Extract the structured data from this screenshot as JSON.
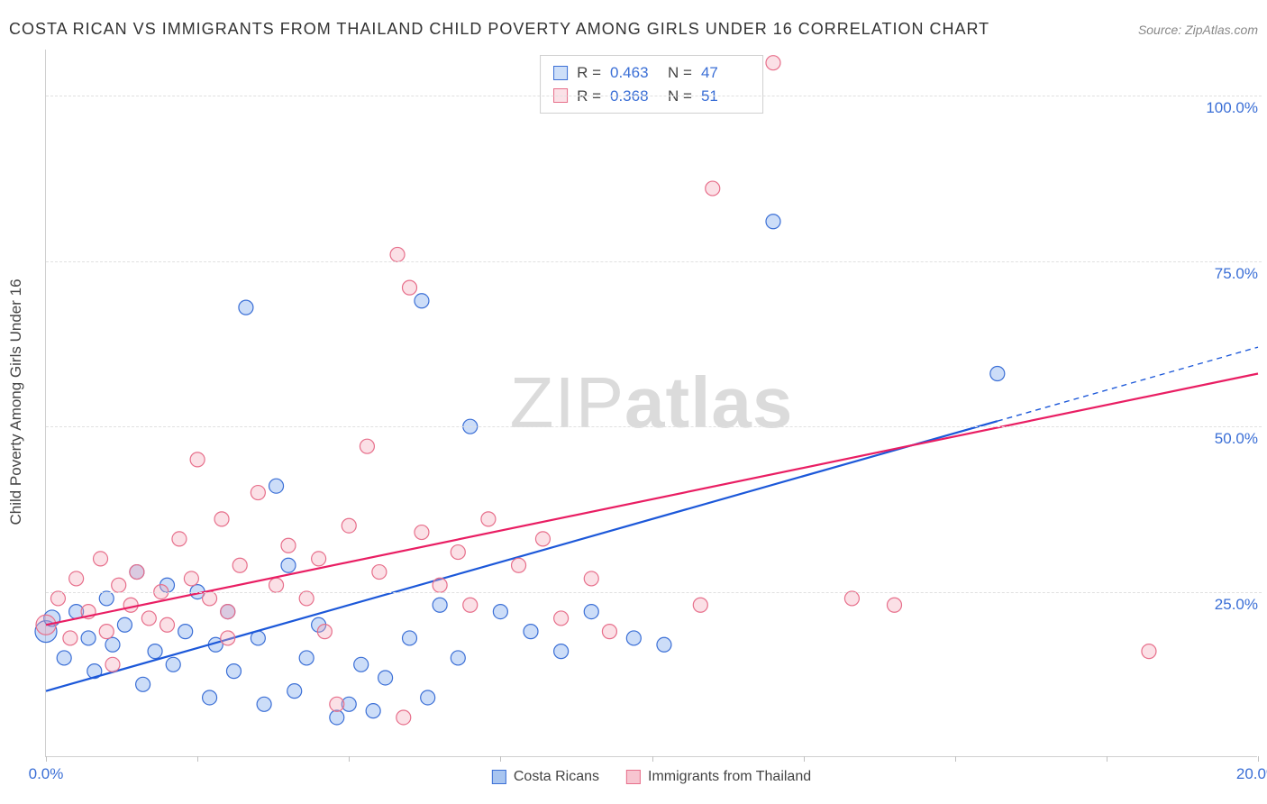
{
  "title": "COSTA RICAN VS IMMIGRANTS FROM THAILAND CHILD POVERTY AMONG GIRLS UNDER 16 CORRELATION CHART",
  "source": "Source: ZipAtlas.com",
  "y_axis_title": "Child Poverty Among Girls Under 16",
  "watermark_thin": "ZIP",
  "watermark_bold": "atlas",
  "chart": {
    "type": "scatter",
    "xlim": [
      0,
      20
    ],
    "ylim": [
      0,
      107
    ],
    "x_ticks": [
      0,
      2.5,
      5,
      7.5,
      10,
      12.5,
      15,
      17.5,
      20
    ],
    "x_tick_labels": {
      "0": "0.0%",
      "20": "20.0%"
    },
    "y_ticks": [
      25,
      50,
      75,
      100
    ],
    "y_tick_labels": {
      "25": "25.0%",
      "50": "50.0%",
      "75": "75.0%",
      "100": "100.0%"
    },
    "background_color": "#ffffff",
    "grid_color": "#e0e0e0",
    "marker_radius": 8,
    "marker_fill_opacity": 0.35,
    "marker_stroke_width": 1.2,
    "line_stroke_width": 2.2
  },
  "series": [
    {
      "key": "costa_ricans",
      "label": "Costa Ricans",
      "color": "#6d9eeb",
      "stroke": "#3b6fd6",
      "line_color": "#1c58d9",
      "R": "0.463",
      "N": "47",
      "trend": {
        "x1": 0,
        "y1": 10,
        "x2": 20,
        "y2": 62,
        "solid_until_x": 15.7
      },
      "points": [
        [
          0.0,
          19,
          12
        ],
        [
          0.1,
          21,
          9
        ],
        [
          0.3,
          15,
          8
        ],
        [
          0.5,
          22,
          8
        ],
        [
          0.7,
          18,
          8
        ],
        [
          0.8,
          13,
          8
        ],
        [
          1.0,
          24,
          8
        ],
        [
          1.1,
          17,
          8
        ],
        [
          1.3,
          20,
          8
        ],
        [
          1.5,
          28,
          8
        ],
        [
          1.6,
          11,
          8
        ],
        [
          1.8,
          16,
          8
        ],
        [
          2.0,
          26,
          8
        ],
        [
          2.1,
          14,
          8
        ],
        [
          2.3,
          19,
          8
        ],
        [
          2.5,
          25,
          8
        ],
        [
          2.7,
          9,
          8
        ],
        [
          2.8,
          17,
          8
        ],
        [
          3.0,
          22,
          8
        ],
        [
          3.1,
          13,
          8
        ],
        [
          3.3,
          68,
          8
        ],
        [
          3.5,
          18,
          8
        ],
        [
          3.6,
          8,
          8
        ],
        [
          3.8,
          41,
          8
        ],
        [
          4.0,
          29,
          8
        ],
        [
          4.1,
          10,
          8
        ],
        [
          4.3,
          15,
          8
        ],
        [
          4.5,
          20,
          8
        ],
        [
          4.8,
          6,
          8
        ],
        [
          5.0,
          8,
          8
        ],
        [
          5.2,
          14,
          8
        ],
        [
          5.4,
          7,
          8
        ],
        [
          5.6,
          12,
          8
        ],
        [
          6.0,
          18,
          8
        ],
        [
          6.2,
          69,
          8
        ],
        [
          6.3,
          9,
          8
        ],
        [
          6.5,
          23,
          8
        ],
        [
          6.8,
          15,
          8
        ],
        [
          7.0,
          50,
          8
        ],
        [
          7.5,
          22,
          8
        ],
        [
          8.0,
          19,
          8
        ],
        [
          8.5,
          16,
          8
        ],
        [
          9.0,
          22,
          8
        ],
        [
          9.7,
          18,
          8
        ],
        [
          10.2,
          17,
          8
        ],
        [
          12.0,
          81,
          8
        ],
        [
          15.7,
          58,
          8
        ]
      ]
    },
    {
      "key": "thailand",
      "label": "Immigrants from Thailand",
      "color": "#f4a6b7",
      "stroke": "#e76f8b",
      "line_color": "#e91e63",
      "R": "0.368",
      "N": "51",
      "trend": {
        "x1": 0,
        "y1": 20,
        "x2": 20,
        "y2": 58,
        "solid_until_x": 20
      },
      "points": [
        [
          0.0,
          20,
          11
        ],
        [
          0.2,
          24,
          8
        ],
        [
          0.4,
          18,
          8
        ],
        [
          0.5,
          27,
          8
        ],
        [
          0.7,
          22,
          8
        ],
        [
          0.9,
          30,
          8
        ],
        [
          1.0,
          19,
          8
        ],
        [
          1.2,
          26,
          8
        ],
        [
          1.4,
          23,
          8
        ],
        [
          1.5,
          28,
          8
        ],
        [
          1.7,
          21,
          8
        ],
        [
          1.9,
          25,
          8
        ],
        [
          2.0,
          20,
          8
        ],
        [
          2.2,
          33,
          8
        ],
        [
          2.4,
          27,
          8
        ],
        [
          2.5,
          45,
          8
        ],
        [
          2.7,
          24,
          8
        ],
        [
          2.9,
          36,
          8
        ],
        [
          3.0,
          22,
          8
        ],
        [
          3.2,
          29,
          8
        ],
        [
          3.5,
          40,
          8
        ],
        [
          3.8,
          26,
          8
        ],
        [
          4.0,
          32,
          8
        ],
        [
          4.3,
          24,
          8
        ],
        [
          4.5,
          30,
          8
        ],
        [
          4.8,
          8,
          8
        ],
        [
          5.0,
          35,
          8
        ],
        [
          5.3,
          47,
          8
        ],
        [
          5.5,
          28,
          8
        ],
        [
          5.8,
          76,
          8
        ],
        [
          6.0,
          71,
          8
        ],
        [
          6.2,
          34,
          8
        ],
        [
          6.5,
          26,
          8
        ],
        [
          6.8,
          31,
          8
        ],
        [
          7.0,
          23,
          8
        ],
        [
          7.3,
          36,
          8
        ],
        [
          7.8,
          29,
          8
        ],
        [
          8.2,
          33,
          8
        ],
        [
          8.5,
          21,
          8
        ],
        [
          9.0,
          27,
          8
        ],
        [
          9.3,
          19,
          8
        ],
        [
          10.8,
          23,
          8
        ],
        [
          11.0,
          86,
          8
        ],
        [
          12.0,
          105,
          8
        ],
        [
          13.3,
          24,
          8
        ],
        [
          14.0,
          23,
          8
        ],
        [
          18.2,
          16,
          8
        ],
        [
          3.0,
          18,
          8
        ],
        [
          4.6,
          19,
          8
        ],
        [
          5.9,
          6,
          8
        ],
        [
          1.1,
          14,
          8
        ]
      ]
    }
  ],
  "legend_bottom": [
    {
      "label": "Costa Ricans",
      "fill": "#a8c5f0",
      "stroke": "#3b6fd6"
    },
    {
      "label": "Immigrants from Thailand",
      "fill": "#f7c5d0",
      "stroke": "#e76f8b"
    }
  ],
  "stats_labels": {
    "R": "R =",
    "N": "N ="
  }
}
